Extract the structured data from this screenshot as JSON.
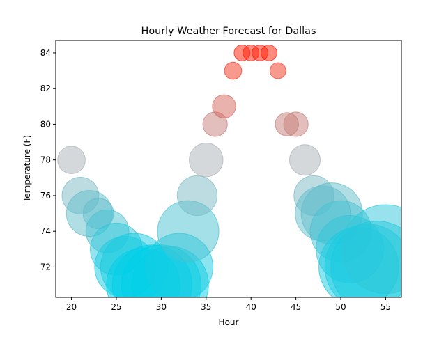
{
  "chart_data": {
    "type": "scatter",
    "title": "Hourly Weather Forecast for Dallas",
    "xlabel": "Hour",
    "ylabel": "Temperature (F)",
    "xlim": [
      18.25,
      56.75
    ],
    "ylim": [
      70.3,
      84.7
    ],
    "x_ticks": [
      20,
      25,
      30,
      35,
      40,
      45,
      50,
      55
    ],
    "y_ticks": [
      72,
      74,
      76,
      78,
      80,
      82,
      84
    ],
    "grid": false,
    "legend": "none",
    "color_scale": {
      "cold": "#00cfe8",
      "neutral": "#a9b1b5",
      "warm": "#ff1a00"
    },
    "points": [
      {
        "hour": 20,
        "temp": 78,
        "size": 0.45
      },
      {
        "hour": 21,
        "temp": 76,
        "size": 0.6
      },
      {
        "hour": 22,
        "temp": 75,
        "size": 0.75
      },
      {
        "hour": 23,
        "temp": 75,
        "size": 0.5
      },
      {
        "hour": 24,
        "temp": 74,
        "size": 0.7
      },
      {
        "hour": 25,
        "temp": 73,
        "size": 0.85
      },
      {
        "hour": 26,
        "temp": 72,
        "size": 1.0
      },
      {
        "hour": 27,
        "temp": 72,
        "size": 1.1
      },
      {
        "hour": 28,
        "temp": 71,
        "size": 1.2
      },
      {
        "hour": 29,
        "temp": 71,
        "size": 1.3
      },
      {
        "hour": 30,
        "temp": 71,
        "size": 1.3
      },
      {
        "hour": 31,
        "temp": 71,
        "size": 1.25
      },
      {
        "hour": 32,
        "temp": 72,
        "size": 1.1
      },
      {
        "hour": 33,
        "temp": 74,
        "size": 1.0
      },
      {
        "hour": 34,
        "temp": 76,
        "size": 0.65
      },
      {
        "hour": 35,
        "temp": 78,
        "size": 0.55
      },
      {
        "hour": 36,
        "temp": 80,
        "size": 0.4
      },
      {
        "hour": 37,
        "temp": 81,
        "size": 0.38
      },
      {
        "hour": 38,
        "temp": 83,
        "size": 0.28
      },
      {
        "hour": 39,
        "temp": 84,
        "size": 0.26
      },
      {
        "hour": 40,
        "temp": 84,
        "size": 0.26
      },
      {
        "hour": 41,
        "temp": 84,
        "size": 0.26
      },
      {
        "hour": 42,
        "temp": 84,
        "size": 0.26
      },
      {
        "hour": 43,
        "temp": 83,
        "size": 0.26
      },
      {
        "hour": 44,
        "temp": 80,
        "size": 0.38
      },
      {
        "hour": 45,
        "temp": 80,
        "size": 0.4
      },
      {
        "hour": 46,
        "temp": 78,
        "size": 0.5
      },
      {
        "hour": 47,
        "temp": 76,
        "size": 0.65
      },
      {
        "hour": 48,
        "temp": 75,
        "size": 0.9
      },
      {
        "hour": 49,
        "temp": 75,
        "size": 1.0
      },
      {
        "hour": 50,
        "temp": 74,
        "size": 1.0
      },
      {
        "hour": 51,
        "temp": 73,
        "size": 1.1
      },
      {
        "hour": 52,
        "temp": 72,
        "size": 1.3
      },
      {
        "hour": 53,
        "temp": 72,
        "size": 1.4
      },
      {
        "hour": 54,
        "temp": 72,
        "size": 1.5
      },
      {
        "hour": 55,
        "temp": 73,
        "size": 1.45
      }
    ]
  }
}
